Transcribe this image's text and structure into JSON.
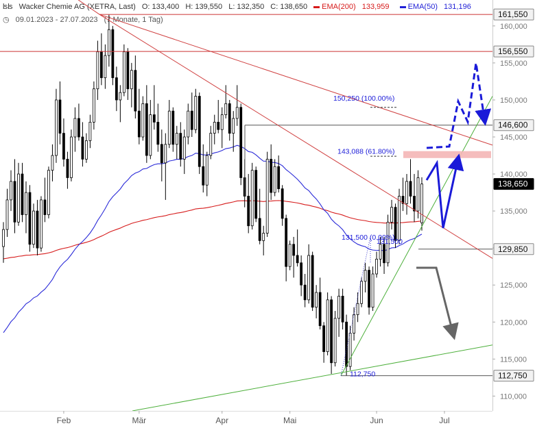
{
  "header": {
    "title": "Wacker Chemie AG (XETRA, Last)",
    "open": "O: 133,400",
    "high": "H: 139,550",
    "low": "L: 132,350",
    "close": "C: 138,650",
    "ema200_label": "EMA(200)",
    "ema200_value": "133,959",
    "ema50_label": "EMA(50)",
    "ema50_value": "131,196",
    "range": "09.01.2023 - 27.07.2023",
    "period": "(7 Monate, 1 Tag)"
  },
  "colors": {
    "candle": "#000000",
    "ema200": "#d61a1a",
    "ema50": "#2a2ad8",
    "trend_red": "#d04040",
    "trend_green": "#4caf3a",
    "fib_zone": "#f4b6b6",
    "scenario_blue": "#1a1ad8",
    "scenario_grey": "#666666"
  },
  "chart_data": {
    "type": "candlestick",
    "ylim": [
      108000,
      163500
    ],
    "y_ticks": [
      "110,000",
      "115,000",
      "120,000",
      "125,000",
      "130,000",
      "135,000",
      "140,000",
      "145,000",
      "150,000",
      "155,000",
      "160,000"
    ],
    "y_tick_values": [
      110000,
      115000,
      120000,
      125000,
      130000,
      135000,
      140000,
      145000,
      150000,
      155000,
      160000
    ],
    "x_labels": [
      "Feb",
      "Mär",
      "Apr",
      "Mai",
      "Jun",
      "Jul"
    ],
    "x_label_index": [
      16,
      36,
      58,
      76,
      99,
      117
    ],
    "ohlc": [
      [
        130.2,
        133.5,
        128.0,
        132.5
      ],
      [
        132.5,
        138.0,
        131.5,
        136.5
      ],
      [
        136.5,
        140.5,
        135.0,
        139.0
      ],
      [
        139.0,
        142.0,
        132.0,
        133.5
      ],
      [
        133.5,
        141.5,
        133.0,
        140.0
      ],
      [
        140.0,
        141.5,
        133.5,
        134.5
      ],
      [
        134.5,
        139.0,
        132.0,
        137.5
      ],
      [
        137.5,
        138.5,
        129.5,
        130.5
      ],
      [
        130.5,
        136.0,
        130.0,
        135.0
      ],
      [
        135.0,
        136.5,
        129.0,
        130.0
      ],
      [
        130.0,
        137.0,
        129.5,
        136.5
      ],
      [
        136.5,
        139.5,
        133.5,
        134.5
      ],
      [
        134.5,
        141.0,
        134.0,
        140.5
      ],
      [
        140.5,
        144.0,
        139.0,
        142.5
      ],
      [
        142.5,
        151.5,
        141.5,
        150.0
      ],
      [
        150.0,
        152.5,
        144.0,
        145.5
      ],
      [
        145.5,
        147.5,
        141.0,
        142.0
      ],
      [
        142.0,
        143.0,
        138.0,
        139.5
      ],
      [
        139.5,
        146.0,
        139.0,
        145.0
      ],
      [
        145.0,
        149.0,
        143.0,
        147.5
      ],
      [
        147.5,
        149.5,
        144.5,
        145.0
      ],
      [
        145.0,
        147.0,
        141.0,
        142.0
      ],
      [
        142.0,
        145.5,
        141.5,
        144.5
      ],
      [
        144.5,
        148.0,
        143.5,
        147.0
      ],
      [
        147.0,
        152.5,
        146.0,
        151.5
      ],
      [
        151.5,
        158.0,
        150.0,
        156.5
      ],
      [
        156.5,
        159.0,
        152.0,
        153.0
      ],
      [
        153.0,
        157.5,
        151.5,
        156.0
      ],
      [
        156.0,
        161.5,
        154.5,
        159.5
      ],
      [
        159.5,
        160.0,
        152.0,
        153.0
      ],
      [
        153.0,
        154.5,
        148.5,
        150.0
      ],
      [
        150.0,
        152.0,
        147.0,
        151.0
      ],
      [
        151.0,
        157.5,
        150.5,
        156.5
      ],
      [
        156.5,
        157.0,
        150.0,
        151.5
      ],
      [
        151.5,
        155.0,
        149.0,
        154.0
      ],
      [
        154.0,
        156.0,
        147.5,
        148.5
      ],
      [
        148.5,
        151.5,
        144.0,
        145.0
      ],
      [
        145.0,
        150.5,
        144.5,
        149.5
      ],
      [
        149.5,
        152.0,
        141.5,
        142.5
      ],
      [
        142.5,
        150.0,
        142.0,
        148.0
      ],
      [
        148.0,
        152.0,
        146.0,
        147.0
      ],
      [
        147.0,
        149.5,
        143.0,
        144.0
      ],
      [
        144.0,
        146.0,
        139.0,
        141.5
      ],
      [
        141.5,
        145.5,
        136.5,
        144.0
      ],
      [
        144.0,
        150.0,
        143.5,
        148.5
      ],
      [
        148.5,
        149.0,
        143.0,
        144.0
      ],
      [
        144.0,
        146.5,
        142.0,
        145.5
      ],
      [
        145.5,
        147.0,
        141.0,
        142.0
      ],
      [
        142.0,
        146.0,
        140.0,
        145.0
      ],
      [
        145.0,
        149.5,
        144.0,
        148.5
      ],
      [
        148.5,
        151.0,
        145.0,
        146.0
      ],
      [
        146.0,
        151.5,
        145.5,
        150.5
      ],
      [
        150.5,
        151.0,
        140.0,
        141.0
      ],
      [
        141.0,
        144.0,
        137.5,
        138.5
      ],
      [
        138.5,
        143.0,
        137.0,
        142.5
      ],
      [
        142.5,
        146.5,
        142.0,
        145.5
      ],
      [
        145.5,
        148.0,
        144.0,
        147.0
      ],
      [
        147.0,
        150.0,
        145.5,
        146.0
      ],
      [
        146.0,
        149.0,
        143.5,
        148.0
      ],
      [
        148.0,
        152.0,
        147.5,
        149.5
      ],
      [
        149.5,
        150.0,
        144.5,
        145.5
      ],
      [
        145.5,
        148.5,
        143.0,
        147.5
      ],
      [
        147.5,
        152.0,
        146.5,
        149.0
      ],
      [
        149.0,
        149.5,
        138.5,
        139.5
      ],
      [
        139.5,
        142.0,
        135.5,
        137.0
      ],
      [
        137.0,
        140.0,
        132.0,
        133.0
      ],
      [
        133.0,
        141.5,
        132.5,
        140.5
      ],
      [
        140.5,
        141.0,
        133.5,
        134.0
      ],
      [
        134.0,
        138.0,
        130.5,
        131.0
      ],
      [
        131.0,
        133.0,
        129.0,
        132.0
      ],
      [
        132.0,
        143.0,
        131.5,
        142.0
      ],
      [
        142.0,
        144.0,
        136.5,
        137.5
      ],
      [
        137.5,
        142.0,
        137.0,
        141.0
      ],
      [
        141.0,
        142.5,
        137.5,
        138.0
      ],
      [
        138.0,
        138.5,
        133.0,
        134.0
      ],
      [
        134.0,
        134.5,
        125.5,
        127.5
      ],
      [
        127.5,
        131.0,
        127.0,
        130.5
      ],
      [
        130.5,
        131.5,
        126.0,
        129.0
      ],
      [
        129.0,
        132.5,
        127.5,
        128.0
      ],
      [
        128.0,
        129.0,
        123.5,
        125.0
      ],
      [
        125.0,
        126.5,
        122.0,
        123.0
      ],
      [
        123.0,
        130.5,
        122.5,
        129.0
      ],
      [
        129.0,
        129.5,
        121.5,
        122.0
      ],
      [
        122.0,
        125.0,
        120.5,
        124.0
      ],
      [
        124.0,
        126.0,
        119.0,
        119.5
      ],
      [
        119.5,
        120.0,
        114.5,
        116.0
      ],
      [
        116.0,
        124.0,
        115.5,
        123.0
      ],
      [
        123.0,
        123.5,
        113.0,
        114.5
      ],
      [
        114.5,
        121.5,
        114.0,
        120.5
      ],
      [
        120.5,
        124.5,
        118.0,
        123.5
      ],
      [
        123.5,
        124.5,
        119.0,
        120.0
      ],
      [
        120.0,
        121.0,
        112.75,
        114.0
      ],
      [
        114.0,
        119.5,
        113.5,
        118.5
      ],
      [
        118.5,
        122.0,
        117.5,
        121.0
      ],
      [
        121.0,
        124.0,
        120.0,
        122.5
      ],
      [
        122.5,
        126.0,
        122.0,
        125.5
      ],
      [
        125.5,
        128.0,
        124.0,
        127.0
      ],
      [
        127.0,
        127.5,
        121.0,
        122.0
      ],
      [
        122.0,
        127.5,
        121.5,
        126.5
      ],
      [
        126.5,
        129.5,
        126.0,
        128.5
      ],
      [
        128.5,
        131.5,
        127.5,
        130.5
      ],
      [
        130.5,
        131.5,
        126.5,
        128.0
      ],
      [
        128.0,
        134.5,
        127.5,
        133.5
      ],
      [
        133.5,
        136.5,
        132.5,
        135.5
      ],
      [
        135.5,
        136.0,
        130.0,
        131.0
      ],
      [
        131.0,
        138.0,
        130.5,
        137.0
      ],
      [
        137.0,
        139.5,
        135.0,
        136.0
      ],
      [
        136.0,
        140.0,
        134.5,
        139.0
      ],
      [
        139.0,
        142.0,
        136.0,
        137.0
      ],
      [
        137.0,
        140.0,
        133.5,
        135.0
      ],
      [
        135.0,
        140.5,
        134.0,
        139.5
      ],
      [
        133.4,
        139.55,
        132.35,
        138.65
      ]
    ],
    "price_tags": [
      {
        "label": "161,550",
        "value": 161550,
        "style": "gray"
      },
      {
        "label": "156,550",
        "value": 156550,
        "style": "gray"
      },
      {
        "label": "146,600",
        "value": 146600,
        "style": "gray"
      },
      {
        "label": "138,650",
        "value": 138650,
        "style": "last"
      },
      {
        "label": "129,850",
        "value": 129850,
        "style": "gray"
      },
      {
        "label": "112,750",
        "value": 112750,
        "style": "gray"
      }
    ],
    "annotations": [
      {
        "label": "150,250 (100.00%)",
        "value": 150250
      },
      {
        "label": "143,088 (61.80%)",
        "value": 143088
      },
      {
        "label": "131,500 (0.00%)",
        "value": 131500
      },
      {
        "label": "131,500",
        "value": 131500
      },
      {
        "label": "112,750",
        "value": 112750
      }
    ]
  }
}
